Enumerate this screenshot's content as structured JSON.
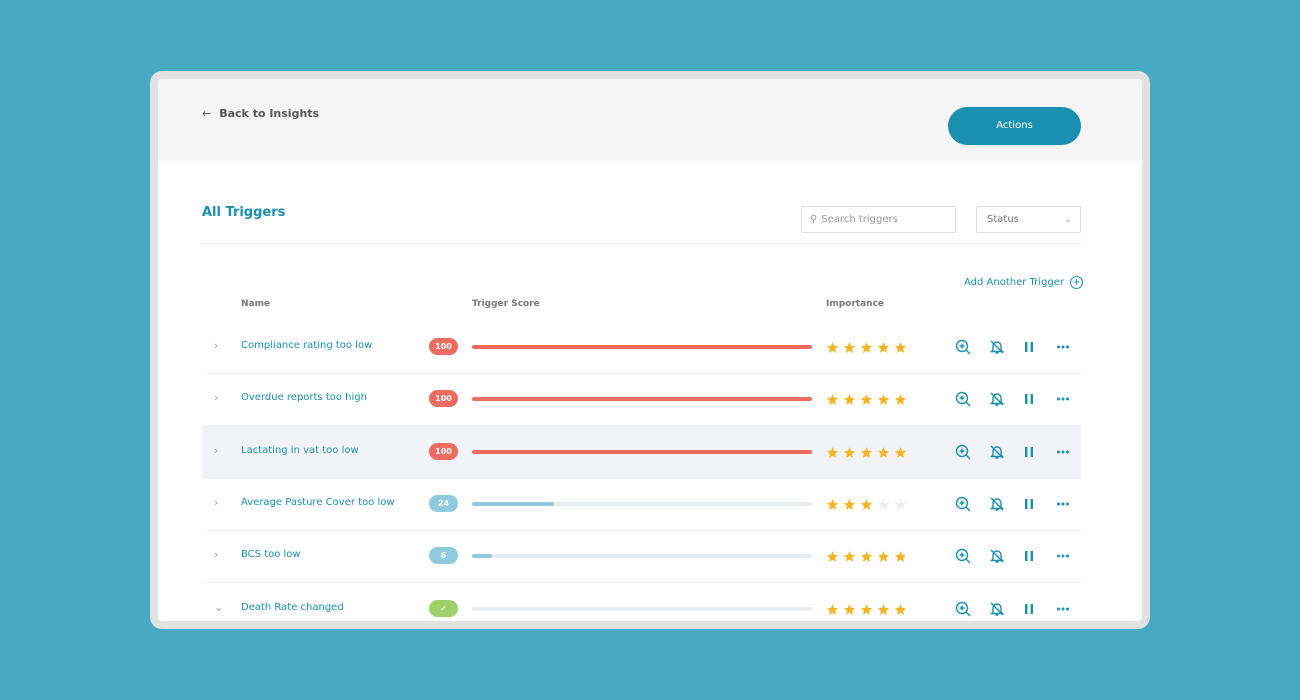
{
  "header": {
    "back_link": "Back to Insights",
    "actions_button": "Actions"
  },
  "section": {
    "title": "All Triggers",
    "search_placeholder": "Search triggers",
    "status_filter": "Status",
    "add_link": "Add Another Trigger"
  },
  "table": {
    "columns": [
      "Name",
      "Trigger Score",
      "Importance"
    ],
    "score_range": [
      0,
      100
    ],
    "importance_range": [
      0,
      5
    ],
    "rows": [
      {
        "name": "Compliance rating too low",
        "score": 100,
        "color": "#ee6b5f",
        "importance": 5
      },
      {
        "name": "Overdue reports too high",
        "score": 100,
        "color": "#ee6b5f",
        "importance": 5
      },
      {
        "name": "Lactating in vat too low",
        "score": 100,
        "color": "#ee6b5f",
        "importance": 5,
        "selected": true
      },
      {
        "name": "Average Pasture Cover too low",
        "score": 24,
        "color": "#8ecbdd",
        "importance": 3
      },
      {
        "name": "BCS too low",
        "score": 6,
        "color": "#8ecbdd",
        "importance": 5
      },
      {
        "name": "Death Rate changed",
        "color": "#9fd16a",
        "importance": 5,
        "expanded": true
      }
    ]
  }
}
